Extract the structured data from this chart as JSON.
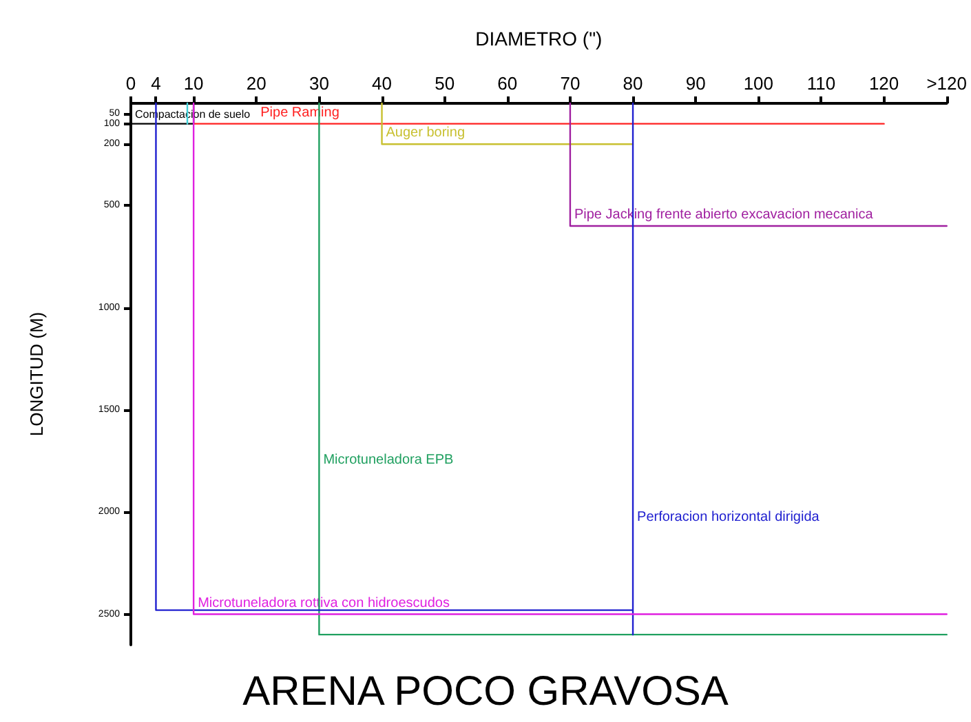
{
  "chart_data": {
    "type": "line",
    "title": "ARENA POCO GRAVOSA",
    "xlabel": "DIAMETRO (\")",
    "ylabel": "LONGITUD (M)",
    "xlim": [
      0,
      130
    ],
    "xticks": [
      0,
      4,
      10,
      20,
      30,
      40,
      50,
      60,
      70,
      80,
      90,
      100,
      110,
      120,
      {
        "value": 130,
        "label": ">120"
      }
    ],
    "ylim": [
      2650,
      0
    ],
    "yticks": [
      50,
      100,
      200,
      500,
      1000,
      1500,
      2000,
      2500
    ],
    "grid": false,
    "marker": "none",
    "line_style": "solid",
    "series": [
      {
        "color": "#000000",
        "x": [
          0,
          10,
          10
        ],
        "values": [
          100,
          100,
          0
        ]
      },
      {
        "color": "#ff2020",
        "x": [
          10,
          120
        ],
        "values": [
          100,
          100
        ]
      },
      {
        "color": "#c8c030",
        "x": [
          40,
          40,
          80
        ],
        "values": [
          0,
          200,
          200
        ]
      },
      {
        "color": "#a020a0",
        "x": [
          70,
          70,
          130
        ],
        "values": [
          0,
          600,
          600
        ]
      },
      {
        "color": "#20a060",
        "x": [
          30,
          30,
          130
        ],
        "values": [
          0,
          2600,
          2600
        ]
      },
      {
        "color": "#2020d0",
        "x": [
          4,
          4,
          80,
          80,
          80
        ],
        "values": [
          0,
          2480,
          2480,
          2600,
          0
        ]
      },
      {
        "color": "#e020e0",
        "x": [
          10,
          10,
          130
        ],
        "values": [
          0,
          2500,
          2500
        ]
      },
      {
        "color": "#40d0d8",
        "x": [
          9,
          9
        ],
        "values": [
          0,
          100
        ]
      }
    ],
    "annotations": [
      {
        "text": "Compactacion de suelo",
        "x": 0,
        "y": 100
      },
      {
        "text": "Pipe Raming",
        "x": 20,
        "y": 100
      },
      {
        "text": "Auger boring",
        "x": 40,
        "y": 200
      },
      {
        "text": "Pipe Jacking frente abierto excavacion mecanica",
        "x": 70,
        "y": 600
      },
      {
        "text": "Microtuneladora EPB",
        "x": 30,
        "y": 1800
      },
      {
        "text": "Perforacion horizontal dirigida",
        "x": 80,
        "y": 2080
      },
      {
        "text": "Microtuneladora rottiva con hidroescudos",
        "x": 10,
        "y": 2500
      }
    ]
  }
}
